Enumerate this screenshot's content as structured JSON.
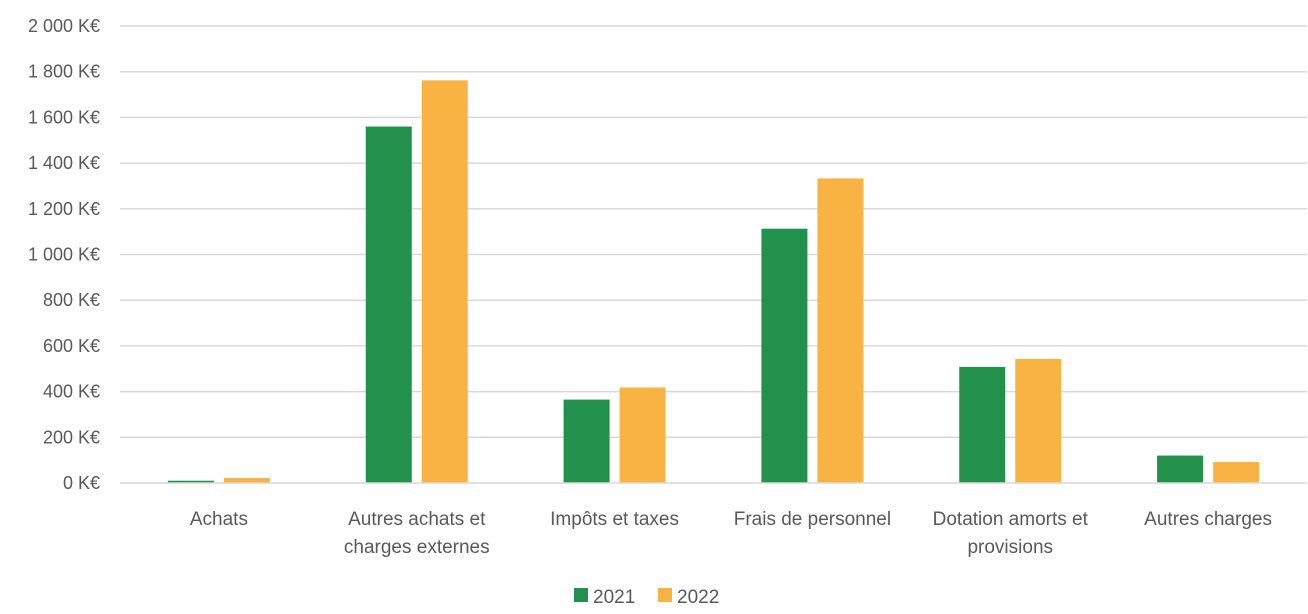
{
  "chart_data": {
    "type": "bar",
    "title": "",
    "xlabel": "",
    "ylabel": "",
    "categories": [
      [
        "Achats"
      ],
      [
        "Autres achats et",
        "charges externes"
      ],
      [
        "Impôts et taxes"
      ],
      [
        "Frais de personnel"
      ],
      [
        "Dotation amorts et",
        "provisions"
      ],
      [
        "Autres charges"
      ]
    ],
    "series": [
      {
        "name": "2021",
        "color": "#21914B",
        "values": [
          10,
          1560,
          365,
          1113,
          508,
          120
        ]
      },
      {
        "name": "2022",
        "color": "#F9B342",
        "values": [
          22,
          1762,
          418,
          1333,
          543,
          92
        ]
      }
    ],
    "ylim": [
      0,
      2000
    ],
    "ytick_values": [
      0,
      200,
      400,
      600,
      800,
      1000,
      1200,
      1400,
      1600,
      1800,
      2000
    ],
    "ytick_labels": [
      "0 K€",
      "200 K€",
      "400 K€",
      "600 K€",
      "800 K€",
      "1 000 K€",
      "1 200 K€",
      "1 400 K€",
      "1 600 K€",
      "1 800 K€",
      "2 000 K€"
    ],
    "grid": true,
    "legend_position": "bottom"
  }
}
